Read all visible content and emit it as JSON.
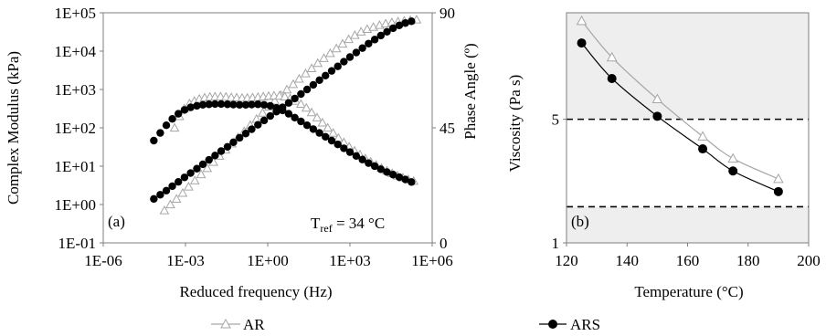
{
  "legend": [
    {
      "label": "AR",
      "marker": "open-triangle",
      "color": "#a6a6a6"
    },
    {
      "label": "ARS",
      "marker": "filled-circle",
      "color": "#000000"
    }
  ],
  "chart_data": [
    {
      "panel": "(a)",
      "type": "scatter",
      "annotation": {
        "text": "T",
        "subscript": "ref",
        "suffix": " = 34 °C"
      },
      "xlabel": "Reduced frequency (Hz)",
      "ylabel": "Complex Modulus (kPa)",
      "y2label": "Phase Angle (º)",
      "xscale": "log",
      "yscale": "log",
      "xlim": [
        1e-06,
        1000000.0
      ],
      "ylim": [
        0.1,
        100000
      ],
      "y2lim": [
        0,
        90
      ],
      "xticks": [
        "1E-06",
        "1E-03",
        "1E+00",
        "1E+03",
        "1E+06"
      ],
      "yticks": [
        "1E-01",
        "1E+00",
        "1E+01",
        "1E+02",
        "1E+03",
        "1E+04",
        "1E+05"
      ],
      "y2ticks": [
        "0",
        "45",
        "90"
      ],
      "grid": false,
      "series": [
        {
          "name": "AR",
          "quantity": "complex modulus",
          "axis": "left",
          "x": [
            0.00017,
            0.00028,
            0.00047,
            0.00079,
            0.0013,
            0.0022,
            0.0037,
            0.0062,
            0.0104,
            0.0174,
            0.029,
            0.049,
            0.082,
            0.138,
            0.23,
            0.39,
            0.65,
            1.1,
            1.8,
            3.0,
            5.0,
            8.5,
            14,
            24,
            40,
            67,
            112,
            190,
            320,
            540,
            900,
            1510,
            2540,
            4260,
            7150,
            12000,
            20100,
            33800,
            56700,
            95200,
            160000,
            270000
          ],
          "y": [
            0.7,
            1.0,
            1.4,
            2.0,
            2.9,
            4.2,
            6.1,
            8.8,
            12.8,
            18.5,
            26.8,
            38.8,
            56,
            81,
            117,
            169,
            245,
            355,
            505,
            710,
            990,
            1370,
            1890,
            2600,
            3550,
            4850,
            6550,
            8800,
            11700,
            15500,
            20300,
            26000,
            32000,
            37500,
            42500,
            47500,
            52000,
            56000,
            59000,
            61500,
            64000,
            66000
          ]
        },
        {
          "name": "ARS",
          "quantity": "complex modulus",
          "axis": "left",
          "x": [
            7e-05,
            0.00012,
            0.0002,
            0.00033,
            0.00055,
            0.00092,
            0.00154,
            0.0026,
            0.0043,
            0.0072,
            0.012,
            0.02,
            0.034,
            0.056,
            0.094,
            0.158,
            0.26,
            0.44,
            0.74,
            1.24,
            2.07,
            3.47,
            5.8,
            9.7,
            16.3,
            27.3,
            46,
            77,
            128,
            215,
            360,
            600,
            1000,
            1700,
            2850,
            4770,
            8000,
            13400,
            22400,
            37500,
            63000,
            105000,
            176000
          ],
          "y": [
            1.4,
            1.8,
            2.3,
            3.0,
            3.9,
            5.1,
            6.6,
            8.6,
            11.2,
            14.6,
            19.0,
            24.7,
            32,
            42,
            55,
            71,
            92,
            120,
            156,
            203,
            264,
            343,
            446,
            580,
            760,
            1000,
            1320,
            1750,
            2300,
            3050,
            4000,
            5300,
            7000,
            9200,
            12000,
            15700,
            20000,
            25500,
            32000,
            39500,
            47000,
            54000,
            60000
          ]
        },
        {
          "name": "AR",
          "quantity": "phase angle",
          "axis": "right",
          "x": [
            0.0004,
            0.0006,
            0.0009,
            0.0014,
            0.0021,
            0.0032,
            0.005,
            0.0078,
            0.012,
            0.019,
            0.03,
            0.047,
            0.074,
            0.116,
            0.18,
            0.28,
            0.44,
            0.69,
            1.08,
            1.7,
            2.67,
            4.2,
            6.6,
            10.4,
            16.3,
            25.6,
            40,
            63,
            99,
            155,
            244,
            380,
            600,
            940,
            1480,
            2320,
            3640,
            5700,
            9000,
            14100,
            22100,
            34700,
            54500,
            85600,
            134000,
            211000
          ],
          "y": [
            45,
            49.5,
            52.5,
            54.5,
            55.5,
            56.3,
            56.8,
            57.1,
            57.2,
            57.2,
            57.1,
            56.9,
            56.8,
            56.7,
            56.7,
            56.8,
            57.0,
            57.2,
            57.4,
            57.6,
            57.5,
            57.2,
            56.5,
            55.5,
            54.3,
            52.8,
            51.0,
            49.0,
            47.0,
            45.0,
            43.0,
            41.0,
            39.3,
            37.6,
            36.0,
            34.5,
            33.0,
            31.7,
            30.5,
            29.3,
            28.2,
            27.2,
            26.3,
            25.5,
            24.8,
            24.2
          ]
        },
        {
          "name": "ARS",
          "quantity": "phase angle",
          "axis": "right",
          "x": [
            7e-05,
            0.00012,
            0.0002,
            0.00033,
            0.00055,
            0.00092,
            0.00154,
            0.0026,
            0.0043,
            0.0072,
            0.012,
            0.02,
            0.034,
            0.056,
            0.094,
            0.158,
            0.26,
            0.44,
            0.74,
            1.24,
            2.07,
            3.47,
            5.8,
            9.7,
            16.3,
            27.3,
            46,
            77,
            128,
            215,
            360,
            600,
            1000,
            1700,
            2850,
            4770,
            8000,
            13400,
            22400,
            37500,
            63000,
            105000,
            176000
          ],
          "y": [
            40,
            43,
            46,
            48.5,
            50.5,
            52,
            53,
            53.6,
            54,
            54.2,
            54.3,
            54.3,
            54.2,
            54.1,
            54.0,
            54.0,
            54.1,
            54.2,
            54.0,
            53.6,
            52.8,
            51.8,
            50.5,
            49,
            47.5,
            46,
            44.5,
            43,
            41.5,
            40,
            38.5,
            37,
            35.5,
            34,
            32.6,
            31.2,
            30,
            28.8,
            27.7,
            26.7,
            25.7,
            24.8,
            23.8
          ]
        }
      ]
    },
    {
      "panel": "(b)",
      "type": "line",
      "xlabel": "Temperature (°C)",
      "ylabel": "Viscosity (Pa s)",
      "xlim": [
        120,
        200
      ],
      "ylim": [
        1,
        20
      ],
      "yscale": "log",
      "xticks": [
        "120",
        "140",
        "160",
        "180",
        "200"
      ],
      "yticks": [
        "1",
        "5"
      ],
      "grid": false,
      "reference_lines": [
        5,
        1.6
      ],
      "shaded_regions": [
        [
          5,
          20
        ],
        [
          1,
          1.6
        ]
      ],
      "series": [
        {
          "name": "AR",
          "x": [
            125,
            135,
            150,
            165,
            175,
            190
          ],
          "y": [
            18,
            11.2,
            6.5,
            4.0,
            3.0,
            2.3
          ]
        },
        {
          "name": "ARS",
          "x": [
            125,
            135,
            150,
            165,
            175,
            190
          ],
          "y": [
            13.5,
            8.5,
            5.2,
            3.4,
            2.55,
            1.95
          ]
        }
      ]
    }
  ]
}
